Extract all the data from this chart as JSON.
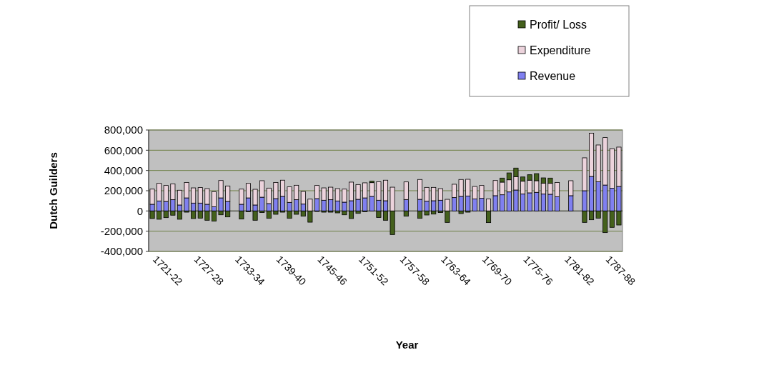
{
  "chart_data": {
    "type": "bar",
    "stacked": true,
    "xlabel": "Year",
    "ylabel": "Dutch Guilders",
    "categories": [
      "1721-22",
      null,
      null,
      null,
      null,
      null,
      "1727-28",
      null,
      null,
      null,
      null,
      null,
      "1733-34",
      null,
      null,
      null,
      null,
      null,
      "1739-40",
      null,
      null,
      null,
      null,
      null,
      "1745-46",
      null,
      null,
      null,
      null,
      null,
      "1751-52",
      null,
      null,
      null,
      null,
      null,
      "1757-58",
      null,
      null,
      null,
      null,
      null,
      "1763-64",
      null,
      null,
      null,
      null,
      null,
      "1769-70",
      null,
      null,
      null,
      null,
      null,
      "1775-76",
      null,
      null,
      null,
      null,
      null,
      "1781-82",
      null,
      null,
      null,
      null,
      null,
      "1787-88",
      null,
      null
    ],
    "series": [
      {
        "name": "Revenue",
        "color": "#8080f0",
        "values": [
          66000,
          99000,
          94000,
          111000,
          59000,
          129000,
          78000,
          78000,
          66000,
          42000,
          129000,
          94000,
          0,
          66000,
          129000,
          59000,
          136000,
          73000,
          122000,
          144000,
          85000,
          111000,
          68000,
          null,
          122000,
          106000,
          111000,
          99000,
          87000,
          101000,
          115000,
          129000,
          144000,
          106000,
          101000,
          0,
          0,
          113000,
          0,
          115000,
          96000,
          101000,
          106000,
          0,
          132000,
          144000,
          148000,
          118000,
          125000,
          0,
          151000,
          160000,
          188000,
          207000,
          167000,
          179000,
          184000,
          167000,
          165000,
          141000,
          0,
          151000,
          0,
          200000,
          341000,
          289000,
          256000,
          224000,
          242000
        ]
      },
      {
        "name": "Expenditure",
        "color": "#ecd3dc",
        "values": [
          150000,
          174000,
          158000,
          157000,
          146000,
          153000,
          150000,
          153000,
          155000,
          149000,
          172000,
          153000,
          0,
          150000,
          144000,
          155000,
          163000,
          153000,
          160000,
          160000,
          153000,
          143000,
          125000,
          117000,
          130000,
          122000,
          124000,
          122000,
          129000,
          184000,
          146000,
          149000,
          136000,
          183000,
          203000,
          235000,
          0,
          174000,
          0,
          196000,
          137000,
          132000,
          115000,
          115000,
          132000,
          167000,
          165000,
          124000,
          127000,
          118000,
          150000,
          125000,
          120000,
          132000,
          127000,
          125000,
          115000,
          108000,
          108000,
          141000,
          0,
          148000,
          0,
          325000,
          428000,
          363000,
          469000,
          392000,
          389000
        ]
      },
      {
        "name": "Profit/ Loss",
        "color": "#44601c",
        "values": [
          -75000,
          -82000,
          -66000,
          -42000,
          -82000,
          -12000,
          -75000,
          -71000,
          -92000,
          -101000,
          -38000,
          -59000,
          0,
          -80000,
          -7000,
          -92000,
          -16000,
          -73000,
          -33000,
          -12000,
          -73000,
          -33000,
          -52000,
          -111000,
          -5000,
          -12000,
          -12000,
          -19000,
          -38000,
          -75000,
          -24000,
          -7000,
          14000,
          -64000,
          -92000,
          -233000,
          0,
          -52000,
          0,
          -73000,
          -40000,
          -31000,
          -16000,
          -113000,
          0,
          -26000,
          -12000,
          0,
          0,
          -115000,
          0,
          40000,
          68000,
          85000,
          42000,
          54000,
          70000,
          52000,
          52000,
          0,
          0,
          0,
          0,
          -113000,
          -87000,
          -71000,
          -214000,
          -162000,
          -139000
        ]
      }
    ],
    "ylim": [
      -400000,
      800000
    ],
    "yticks": [
      {
        "value": -400000,
        "label": "-400,000"
      },
      {
        "value": -200000,
        "label": "-200,000"
      },
      0,
      {
        "value": 200000,
        "label": "200,000"
      },
      {
        "value": 400000,
        "label": "400,000"
      },
      {
        "value": 600000,
        "label": "600,000"
      },
      {
        "value": 800000,
        "label": "800,000"
      }
    ],
    "grid": "y",
    "legend": "top right"
  }
}
